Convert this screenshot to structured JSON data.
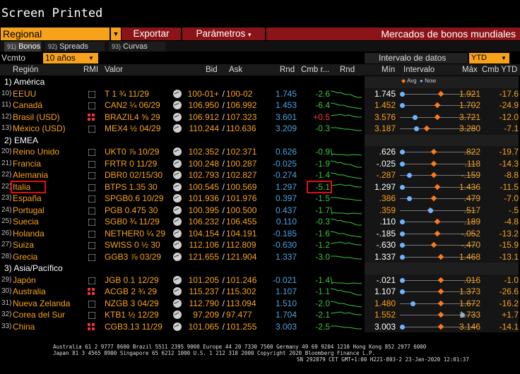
{
  "title": "Screen Printed",
  "toolbar": {
    "regional": "Regional",
    "exportar": "Exportar",
    "parametros": "Parámetros",
    "parametros_arrow": "▾",
    "right_title": "Mercados de bonos mundiales"
  },
  "tabs": [
    {
      "num": "91)",
      "label": "Bonos"
    },
    {
      "num": "92)",
      "label": "Spreads"
    },
    {
      "num": "93)",
      "label": "Curvas"
    }
  ],
  "filters": {
    "vcmto_label": "Vcmto",
    "vcmto_value": "10 años",
    "intervalo_label": "Intervalo de datos",
    "intervalo_value": "YTD"
  },
  "headers": {
    "region": "Región",
    "rmi": "RMI",
    "valor": "Valor",
    "bid": "Bid",
    "ask": "Ask",
    "rnd": "Rnd",
    "cmb": "Cmb r...",
    "rnd2": "Rnd",
    "min": "Mín",
    "intervalo": "Intervalo",
    "max": "Máx",
    "cmb_ytd": "Cmb YTD"
  },
  "legend": {
    "avg": "Avg",
    "now": "Now"
  },
  "colors": {
    "accent": "#f7a21b",
    "red_bar": "#8b1419",
    "blue": "#4aa3e0",
    "green": "#3ec23e"
  },
  "rows": [
    {
      "type": "section",
      "label": "1) América"
    },
    {
      "type": "bond",
      "idx": "10)",
      "region": "EEUU",
      "rmi": "box",
      "valor": "T 1 ¾ 11/29",
      "bid": "100-01+",
      "ask": "100-02",
      "rnd": "1.745",
      "cmb": "-2.6",
      "min": "1.745",
      "min_hl": true,
      "max": "1.921",
      "ytd": "-17.6",
      "now": 0.0,
      "avg": 0.55
    },
    {
      "type": "bond",
      "idx": "11)",
      "region": "Canadá",
      "rmi": "box",
      "valor": "CAN2 ¼ 06/29",
      "bid": "106.950",
      "ask": "106.992",
      "rnd": "1.453",
      "cmb": "-6.4",
      "min": "1.452",
      "min_hl": false,
      "max": "1.702",
      "ytd": "-24.9",
      "now": 0.0,
      "avg": 0.5
    },
    {
      "type": "bond",
      "idx": "12)",
      "region": "Brasil (USD)",
      "rmi": "red",
      "valor": "BRAZIL4 ⅝ 29",
      "bid": "106.912",
      "ask": "107.323",
      "rnd": "3.601",
      "cmb": "+0.5",
      "min": "3.576",
      "min_hl": false,
      "max": "3.721",
      "ytd": "-12.0",
      "now": 0.18,
      "avg": 0.5
    },
    {
      "type": "bond",
      "idx": "13)",
      "region": "México (USD)",
      "rmi": "box",
      "valor": "MEX4 ½ 04/29",
      "bid": "110.244",
      "ask": "110.636",
      "rnd": "3.209",
      "cmb": "-0.3",
      "min": "3.187",
      "min_hl": false,
      "max": "3.280",
      "ytd": "-7.1",
      "now": 0.2,
      "avg": 0.35
    },
    {
      "type": "section",
      "label": "2) EMEA"
    },
    {
      "type": "bond",
      "idx": "20)",
      "region": "Reino Unido",
      "rmi": "box",
      "valor": "UKT0 ⅞ 10/29",
      "bid": "102.352",
      "ask": "102.371",
      "rnd": "0.626",
      "cmb": "-0.9",
      "min": ".626",
      "min_hl": true,
      "max": ".822",
      "ytd": "-19.7",
      "now": 0.0,
      "avg": 0.45
    },
    {
      "type": "bond",
      "idx": "21)",
      "region": "Francia",
      "rmi": "box",
      "valor": "FRTR 0 11/29",
      "bid": "100.248",
      "ask": "100.287",
      "rnd": "-0.025",
      "cmb": "-1.9",
      "min": "-.025",
      "min_hl": true,
      "max": ".118",
      "ytd": "-14.3",
      "now": 0.0,
      "avg": 0.45
    },
    {
      "type": "bond",
      "idx": "22)",
      "region": "Alemania",
      "rmi": "box",
      "valor": "DBR0 02/15/30",
      "bid": "102.793",
      "ask": "102.827",
      "rnd": "-0.274",
      "cmb": "-1.4",
      "min": "-.287",
      "min_hl": false,
      "max": "-.159",
      "ytd": "-8.8",
      "now": 0.1,
      "avg": 0.45
    },
    {
      "type": "bond",
      "idx": "22)",
      "region": "Italia",
      "rmi": "box",
      "valor": "BTPS 1.35 30",
      "bid": "100.545",
      "ask": "100.569",
      "rnd": "1.297",
      "cmb": "-5.1",
      "min": "1.297",
      "min_hl": true,
      "max": "1.436",
      "ytd": "-11.5",
      "now": 0.0,
      "avg": 0.5,
      "highlight": true
    },
    {
      "type": "bond",
      "idx": "23)",
      "region": "España",
      "rmi": "box",
      "valor": "SPGB0.6 10/29",
      "bid": "101.936",
      "ask": "101.976",
      "rnd": "0.397",
      "cmb": "-1.5",
      "min": ".386",
      "min_hl": false,
      "max": ".479",
      "ytd": "-7.0",
      "now": 0.1,
      "avg": 0.45
    },
    {
      "type": "bond",
      "idx": "24)",
      "region": "Portugal",
      "rmi": "box",
      "valor": "PGB 0.475 30",
      "bid": "100.395",
      "ask": "100.500",
      "rnd": "0.437",
      "cmb": "-1.7",
      "min": ".359",
      "min_hl": false,
      "max": ".517",
      "ytd": "-.5",
      "now": 0.4,
      "avg": 0.4
    },
    {
      "type": "bond",
      "idx": "25)",
      "region": "Suecia",
      "rmi": "box",
      "valor": "SGB0 ¾ 11/29",
      "bid": "106.232",
      "ask": "106.455",
      "rnd": "0.110",
      "cmb": "-0.3",
      "min": ".110",
      "min_hl": true,
      "max": ".189",
      "ytd": "-4.8",
      "now": 0.0,
      "avg": 0.5
    },
    {
      "type": "bond",
      "idx": "26)",
      "region": "Holanda",
      "rmi": "box",
      "valor": "NETHER0 ¼ 29",
      "bid": "104.154",
      "ask": "104.191",
      "rnd": "-0.185",
      "cmb": "-1.6",
      "min": "-.185",
      "min_hl": true,
      "max": "-.052",
      "ytd": "-13.2",
      "now": 0.0,
      "avg": 0.5
    },
    {
      "type": "bond",
      "idx": "27)",
      "region": "Suiza",
      "rmi": "box",
      "valor": "SWISS 0 ½ 30",
      "bid": "112.106",
      "ask": "112.809",
      "rnd": "-0.630",
      "cmb": "-1.2",
      "min": "-.630",
      "min_hl": true,
      "max": "-.470",
      "ytd": "-15.9",
      "now": 0.0,
      "avg": 0.45
    },
    {
      "type": "bond",
      "idx": "28)",
      "region": "Grecia",
      "rmi": "box",
      "valor": "GGB3 ⅞ 03/29",
      "bid": "121.655",
      "ask": "121.904",
      "rnd": "1.337",
      "cmb": "-3.0",
      "min": "1.337",
      "min_hl": true,
      "max": "1.468",
      "ytd": "-13.1",
      "now": 0.0,
      "avg": 0.55
    },
    {
      "type": "section",
      "label": "3) Asia/Pacífico"
    },
    {
      "type": "bond",
      "idx": "29)",
      "region": "Japón",
      "rmi": "box",
      "valor": "JGB 0.1 12/29",
      "bid": "101.205",
      "ask": "101.246",
      "rnd": "-0.021",
      "cmb": "-1.4",
      "min": "-.021",
      "min_hl": true,
      "max": ".016",
      "ytd": "-1.0",
      "now": 0.0,
      "avg": 0.55
    },
    {
      "type": "bond",
      "idx": "30)",
      "region": "Australia",
      "rmi": "red",
      "valor": "ACGB 2 ¾ 29",
      "bid": "115.237",
      "ask": "115.302",
      "rnd": "1.107",
      "cmb": "-1.1",
      "min": "1.107",
      "min_hl": true,
      "max": "1.373",
      "ytd": "-26.6",
      "now": 0.0,
      "avg": 0.55
    },
    {
      "type": "bond",
      "idx": "31)",
      "region": "Nueva Zelanda",
      "rmi": "box",
      "valor": "NZGB 3 04/29",
      "bid": "112.790",
      "ask": "113.094",
      "rnd": "1.510",
      "cmb": "-2.0",
      "min": "1.480",
      "min_hl": false,
      "max": "1.672",
      "ytd": "-16.2",
      "now": 0.15,
      "avg": 0.55
    },
    {
      "type": "bond",
      "idx": "32)",
      "region": "Corea del Sur",
      "rmi": "box",
      "valor": "KTB1 ½ 12/29",
      "bid": "97.209",
      "ask": "97.477",
      "rnd": "1.704",
      "cmb": "-2.1",
      "min": "1.552",
      "min_hl": false,
      "max": "1.733",
      "ytd": "+1.7",
      "now": 0.85,
      "avg": 0.55
    },
    {
      "type": "bond",
      "idx": "33)",
      "region": "China",
      "rmi": "red",
      "valor": "CGB3.13 11/29",
      "bid": "101.065",
      "ask": "101.255",
      "rnd": "3.003",
      "cmb": "-2.5",
      "min": "3.003",
      "min_hl": true,
      "max": "3.146",
      "ytd": "-14.1",
      "now": 0.0,
      "avg": 0.55
    }
  ],
  "footer": {
    "line1": "Australia 61 2 9777 8600  Brazil 5511 2395 9000  Europe 44 20 7330 7500  Germany 49 69 9204 1210  Hong Kong 852 2977 6000",
    "line2": "Japan 81 3 4565 8900       Singapore 65 6212 1000       U.S. 1 212 318 2000       Copyright 2020 Bloomberg Finance L.P.",
    "line3": "SN 292879 CET  GMT+1:00 H221-803-2 23-Jan-2020 12:01:37"
  }
}
